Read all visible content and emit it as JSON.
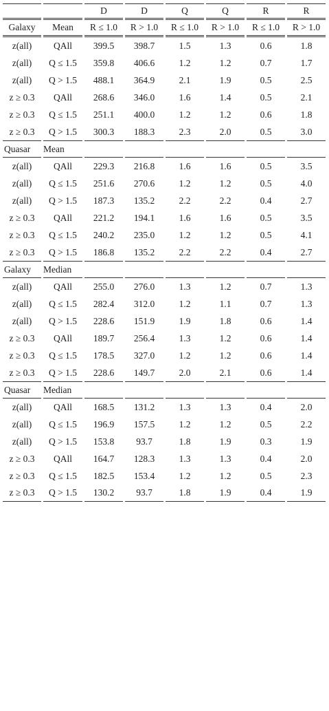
{
  "header": {
    "groups": [
      "D",
      "D",
      "Q",
      "Q",
      "R",
      "R"
    ],
    "columns": [
      "R ≤ 1.0",
      "R > 1.0",
      "R ≤ 1.0",
      "R > 1.0",
      "R ≤ 1.0",
      "R > 1.0"
    ]
  },
  "sections": [
    {
      "title": [
        "Galaxy",
        "Mean"
      ],
      "rows": [
        [
          "z(all)",
          "QAll",
          "399.5",
          "398.7",
          "1.5",
          "1.3",
          "0.6",
          "1.8"
        ],
        [
          "z(all)",
          "Q ≤ 1.5",
          "359.8",
          "406.6",
          "1.2",
          "1.2",
          "0.7",
          "1.7"
        ],
        [
          "z(all)",
          "Q > 1.5",
          "488.1",
          "364.9",
          "2.1",
          "1.9",
          "0.5",
          "2.5"
        ],
        [
          "z ≥ 0.3",
          "QAll",
          "268.6",
          "346.0",
          "1.6",
          "1.4",
          "0.5",
          "2.1"
        ],
        [
          "z ≥ 0.3",
          "Q ≤ 1.5",
          "251.1",
          "400.0",
          "1.2",
          "1.2",
          "0.6",
          "1.8"
        ],
        [
          "z ≥ 0.3",
          "Q > 1.5",
          "300.3",
          "188.3",
          "2.3",
          "2.0",
          "0.5",
          "3.0"
        ]
      ]
    },
    {
      "title": [
        "Quasar",
        "Mean"
      ],
      "rows": [
        [
          "z(all)",
          "QAll",
          "229.3",
          "216.8",
          "1.6",
          "1.6",
          "0.5",
          "3.5"
        ],
        [
          "z(all)",
          "Q ≤ 1.5",
          "251.6",
          "270.6",
          "1.2",
          "1.2",
          "0.5",
          "4.0"
        ],
        [
          "z(all)",
          "Q > 1.5",
          "187.3",
          "135.2",
          "2.2",
          "2.2",
          "0.4",
          "2.7"
        ],
        [
          "z ≥ 0.3",
          "QAll",
          "221.2",
          "194.1",
          "1.6",
          "1.6",
          "0.5",
          "3.5"
        ],
        [
          "z ≥ 0.3",
          "Q ≤ 1.5",
          "240.2",
          "235.0",
          "1.2",
          "1.2",
          "0.5",
          "4.1"
        ],
        [
          "z ≥ 0.3",
          "Q > 1.5",
          "186.8",
          "135.2",
          "2.2",
          "2.2",
          "0.4",
          "2.7"
        ]
      ]
    },
    {
      "title": [
        "Galaxy",
        "Median"
      ],
      "rows": [
        [
          "z(all)",
          "QAll",
          "255.0",
          "276.0",
          "1.3",
          "1.2",
          "0.7",
          "1.3"
        ],
        [
          "z(all)",
          "Q ≤ 1.5",
          "282.4",
          "312.0",
          "1.2",
          "1.1",
          "0.7",
          "1.3"
        ],
        [
          "z(all)",
          "Q > 1.5",
          "228.6",
          "151.9",
          "1.9",
          "1.8",
          "0.6",
          "1.4"
        ],
        [
          "z ≥ 0.3",
          "QAll",
          "189.7",
          "256.4",
          "1.3",
          "1.2",
          "0.6",
          "1.4"
        ],
        [
          "z ≥ 0.3",
          "Q ≤ 1.5",
          "178.5",
          "327.0",
          "1.2",
          "1.2",
          "0.6",
          "1.4"
        ],
        [
          "z ≥ 0.3",
          "Q > 1.5",
          "228.6",
          "149.7",
          "2.0",
          "2.1",
          "0.6",
          "1.4"
        ]
      ]
    },
    {
      "title": [
        "Quasar",
        "Median"
      ],
      "rows": [
        [
          "z(all)",
          "QAll",
          "168.5",
          "131.2",
          "1.3",
          "1.3",
          "0.4",
          "2.0"
        ],
        [
          "z(all)",
          "Q ≤ 1.5",
          "196.9",
          "157.5",
          "1.2",
          "1.2",
          "0.5",
          "2.2"
        ],
        [
          "z(all)",
          "Q > 1.5",
          "153.8",
          "93.7",
          "1.8",
          "1.9",
          "0.3",
          "1.9"
        ],
        [
          "z ≥ 0.3",
          "QAll",
          "164.7",
          "128.3",
          "1.3",
          "1.3",
          "0.4",
          "2.0"
        ],
        [
          "z ≥ 0.3",
          "Q ≤ 1.5",
          "182.5",
          "153.4",
          "1.2",
          "1.2",
          "0.5",
          "2.3"
        ],
        [
          "z ≥ 0.3",
          "Q > 1.5",
          "130.2",
          "93.7",
          "1.8",
          "1.9",
          "0.4",
          "1.9"
        ]
      ]
    }
  ]
}
